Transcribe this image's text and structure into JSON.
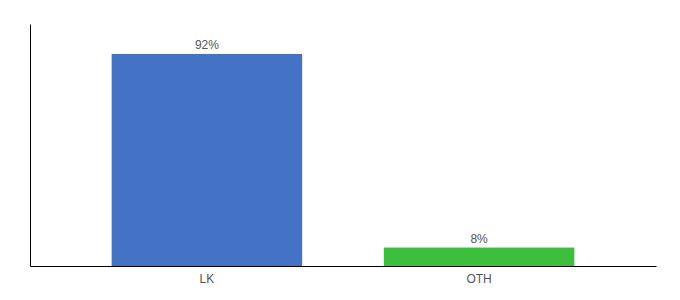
{
  "chart_data": {
    "type": "bar",
    "categories": [
      "LK",
      "OTH"
    ],
    "values": [
      92,
      8
    ],
    "value_labels": [
      "92%",
      "8%"
    ],
    "colors": [
      "#4472c4",
      "#3dbf3d"
    ],
    "ylim": [
      0,
      105
    ],
    "data_labels": true,
    "tick_labels": "x"
  }
}
